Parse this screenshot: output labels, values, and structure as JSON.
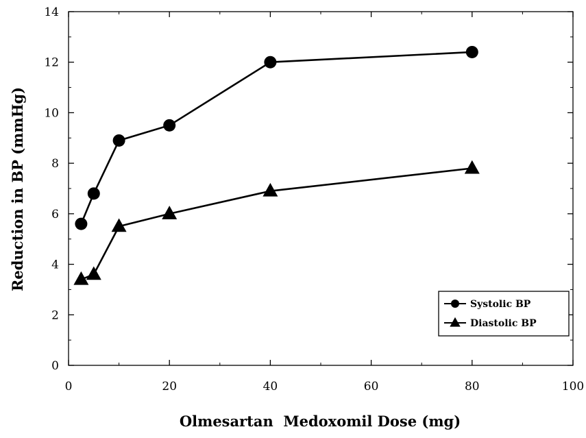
{
  "chart_data": {
    "type": "line",
    "title": "",
    "xlabel": "Olmesartan  Medoxomil Dose (mg)",
    "ylabel": "Reduction in BP (mmHg)",
    "xlim": [
      0,
      100
    ],
    "ylim": [
      0,
      14
    ],
    "xticks": [
      0,
      20,
      40,
      60,
      80,
      100
    ],
    "yticks": [
      0,
      2,
      4,
      6,
      8,
      10,
      12,
      14
    ],
    "xtick_labels": [
      "0",
      "20",
      "40",
      "60",
      "80",
      "100"
    ],
    "ytick_labels": [
      "0",
      "2",
      "4",
      "6",
      "8",
      "10",
      "12",
      "14"
    ],
    "grid": false,
    "legend_position": "bottom-right",
    "series": [
      {
        "name": "Systolic BP",
        "marker": "circle",
        "color": "#000000",
        "points": [
          [
            2.5,
            5.6
          ],
          [
            5,
            6.8
          ],
          [
            10,
            8.9
          ],
          [
            20,
            9.5
          ],
          [
            40,
            12.0
          ],
          [
            80,
            12.4
          ]
        ]
      },
      {
        "name": "Diastolic BP",
        "marker": "triangle",
        "color": "#000000",
        "points": [
          [
            2.5,
            3.4
          ],
          [
            5,
            3.6
          ],
          [
            10,
            5.5
          ],
          [
            20,
            6.0
          ],
          [
            40,
            6.9
          ],
          [
            80,
            7.8
          ]
        ]
      }
    ]
  }
}
